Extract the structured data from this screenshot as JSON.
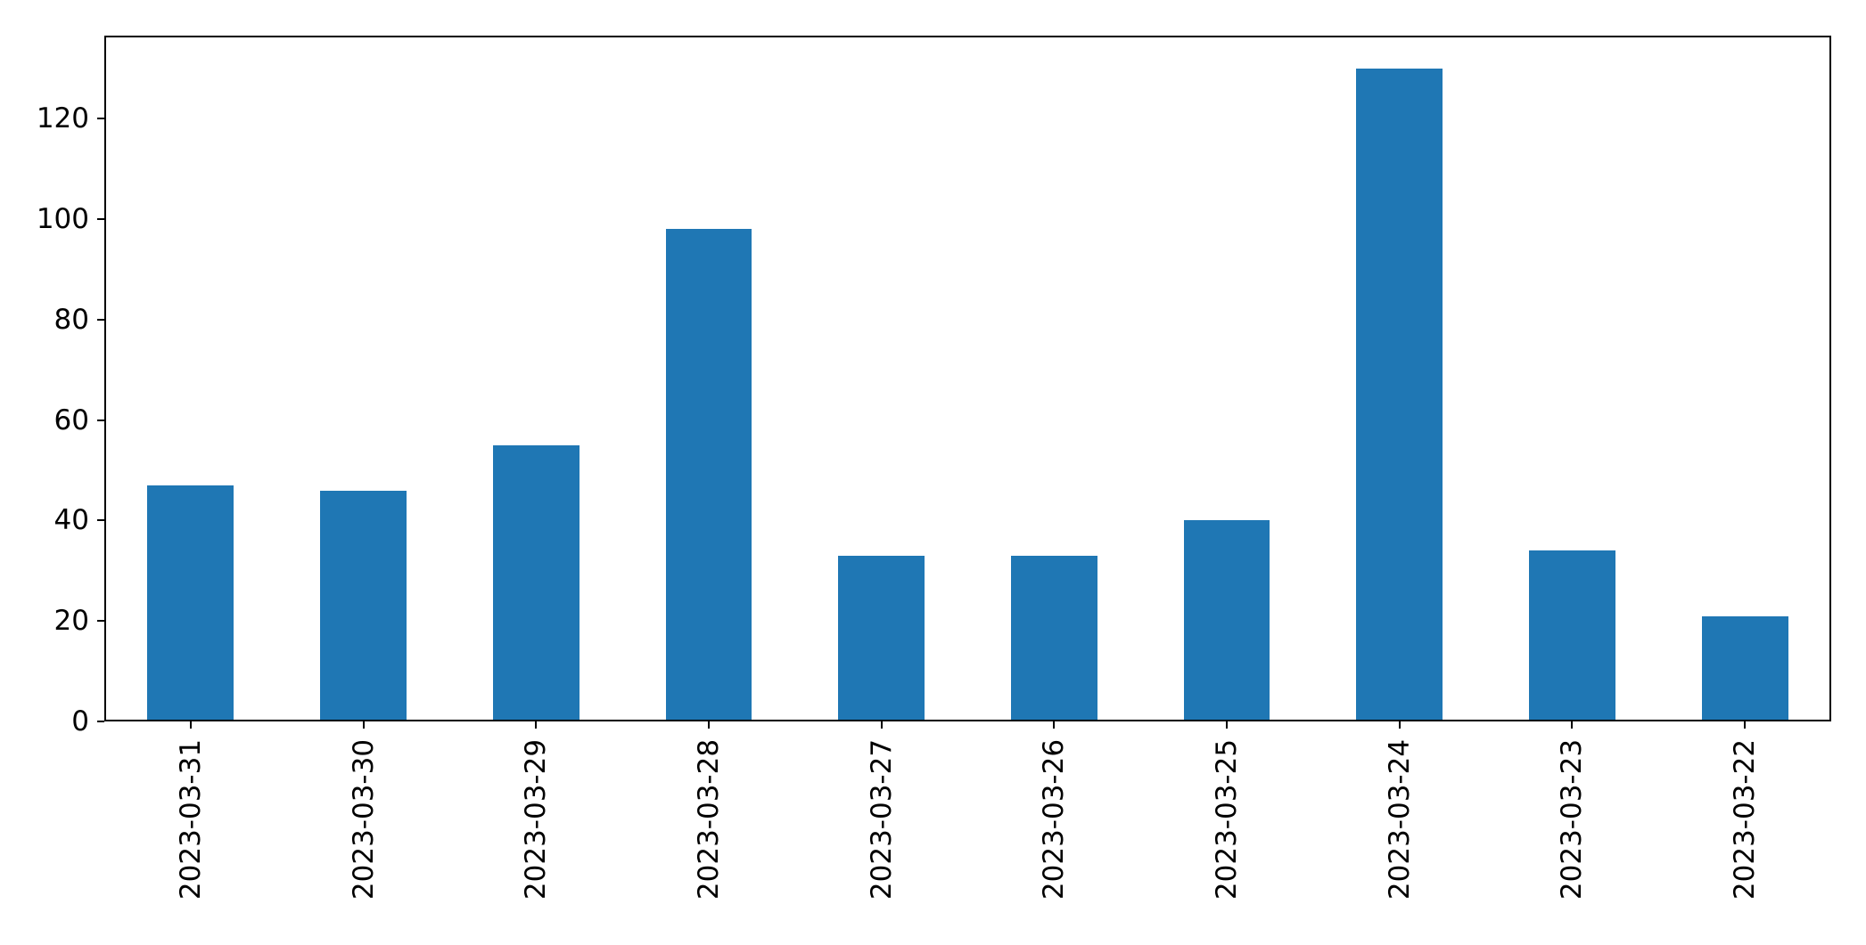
{
  "chart_data": {
    "type": "bar",
    "title": "",
    "xlabel": "",
    "ylabel": "",
    "categories": [
      "2023-03-31",
      "2023-03-30",
      "2023-03-29",
      "2023-03-28",
      "2023-03-27",
      "2023-03-26",
      "2023-03-25",
      "2023-03-24",
      "2023-03-23",
      "2023-03-22"
    ],
    "values": [
      47,
      46,
      55,
      98,
      33,
      33,
      40,
      130,
      34,
      21
    ],
    "ylim": [
      0,
      136.5
    ],
    "yticks": [
      0,
      20,
      40,
      60,
      80,
      100,
      120
    ],
    "x_tick_rotation_deg": 90,
    "bar_width_fraction": 0.5,
    "grid": false,
    "legend": false,
    "bar_color": "#1f77b4",
    "axis_color": "#000000",
    "background_color": "#ffffff"
  }
}
